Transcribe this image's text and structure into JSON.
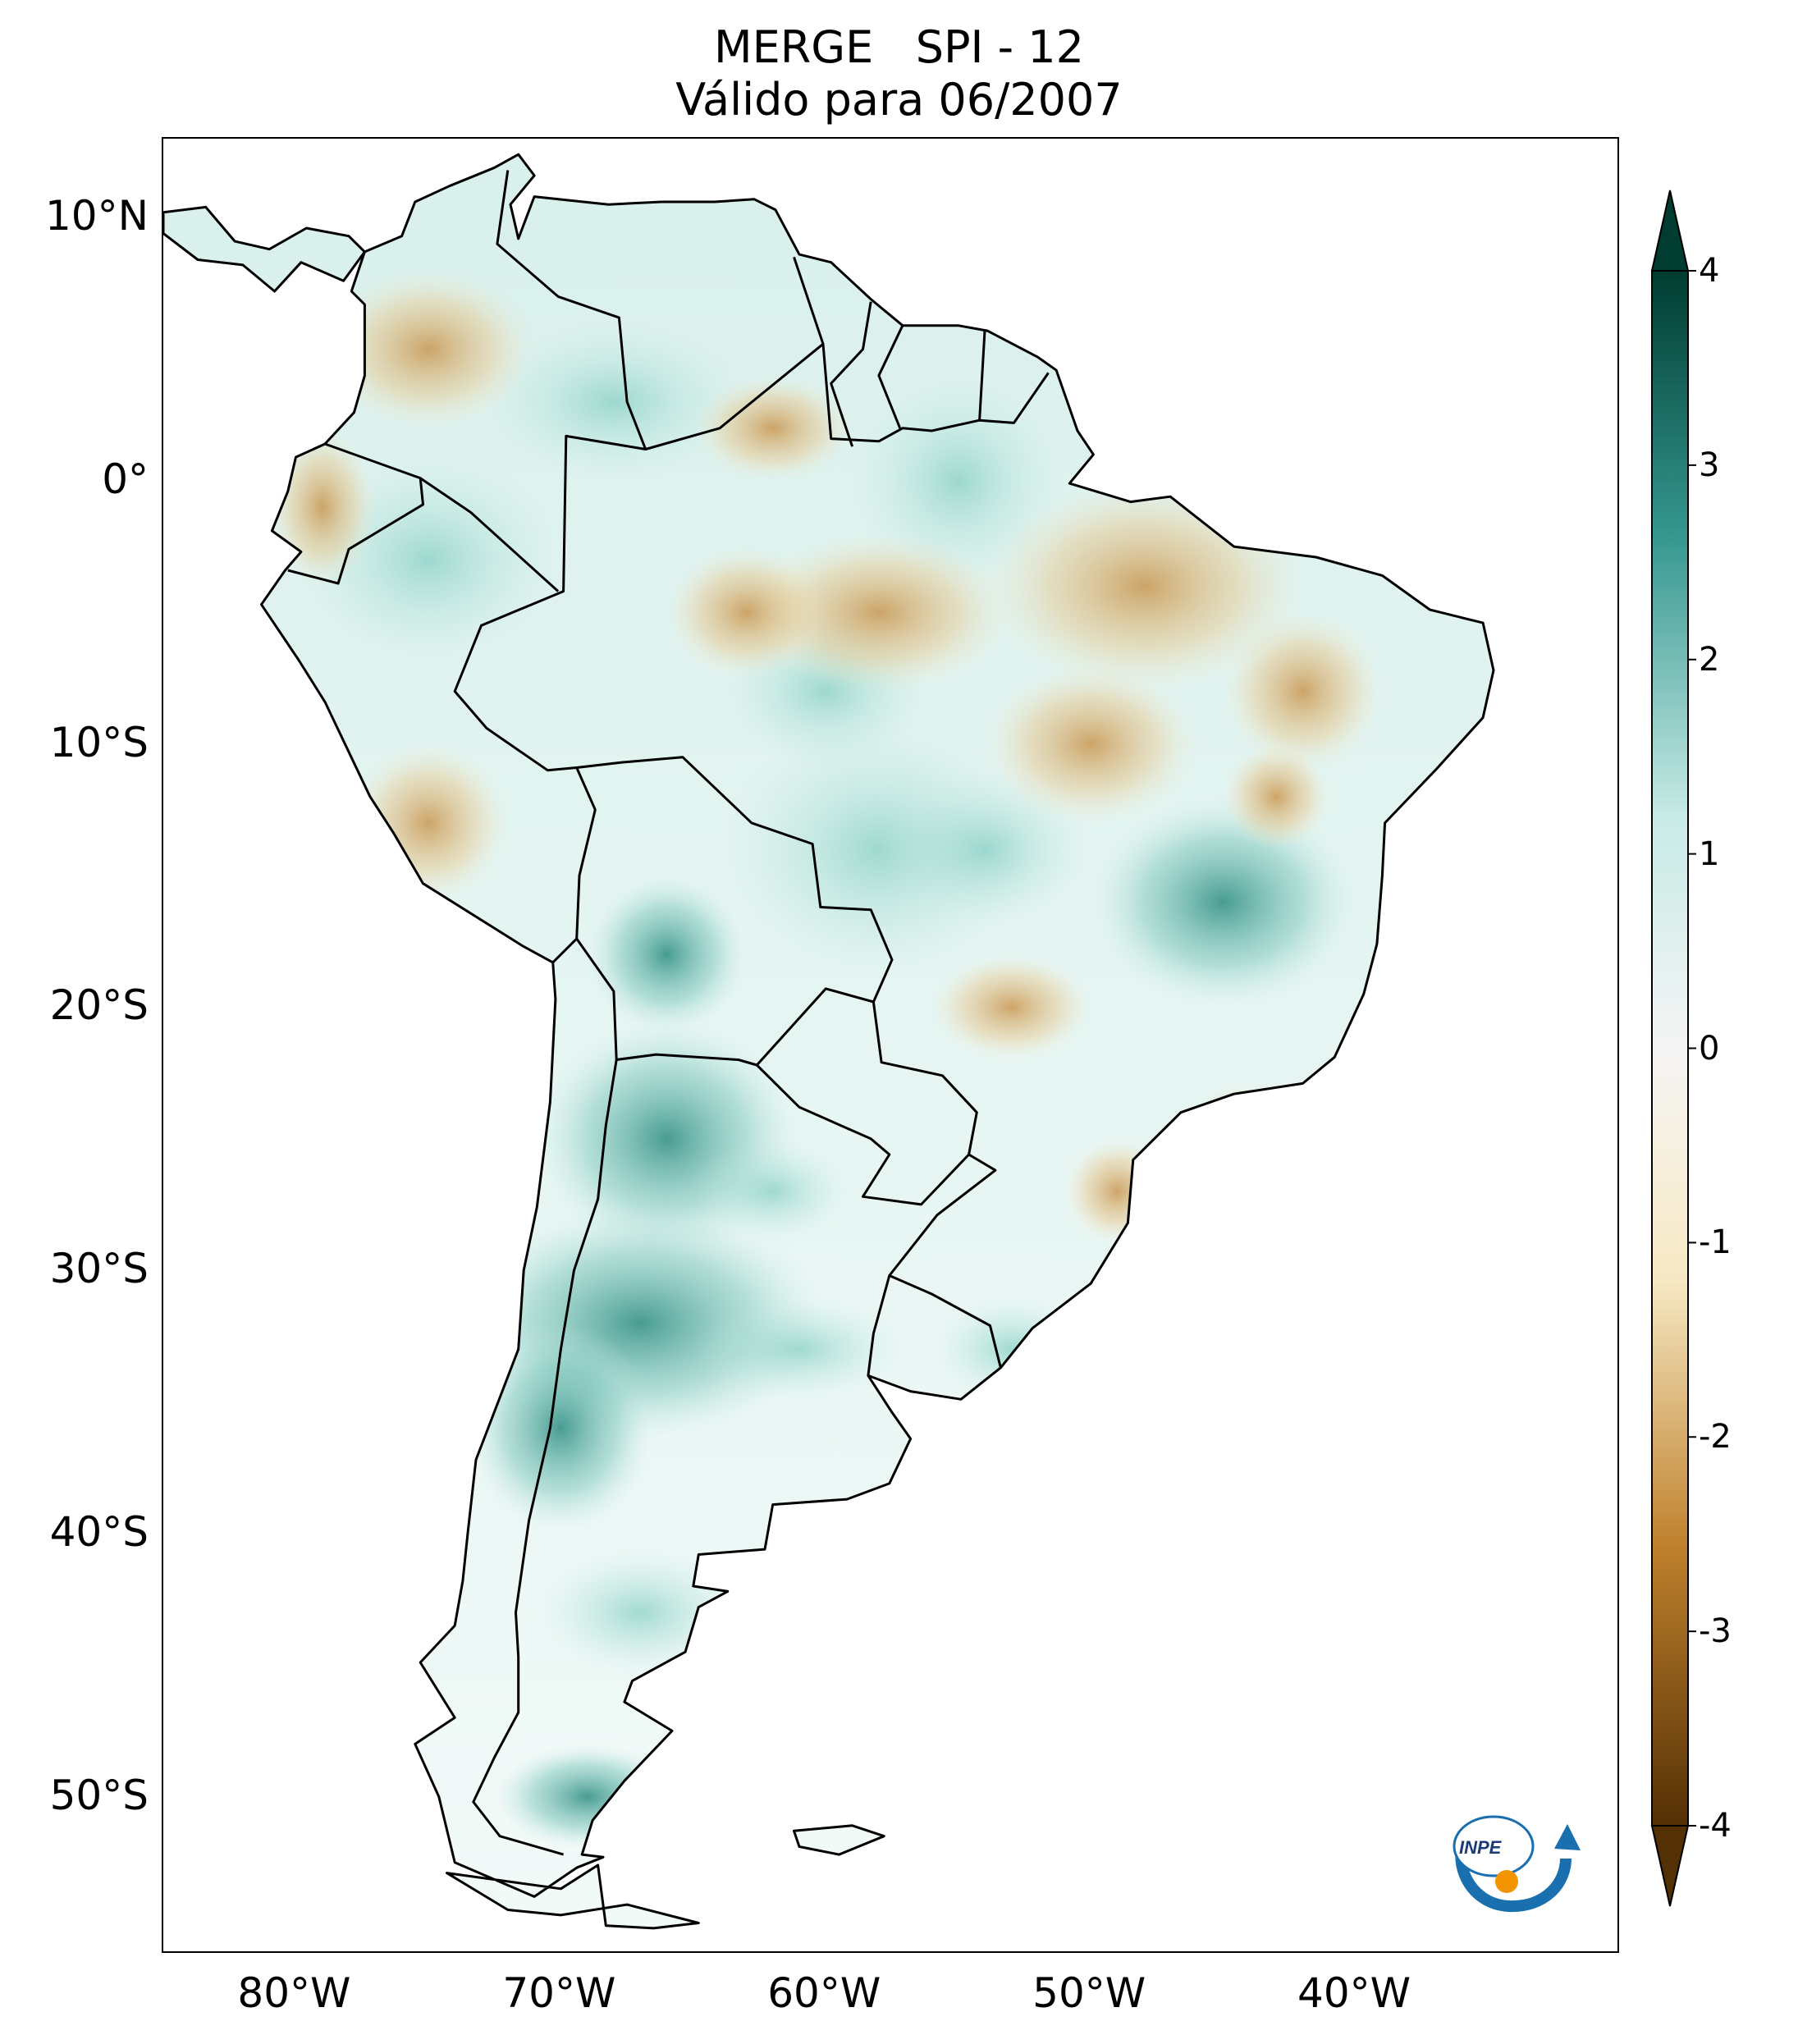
{
  "title": {
    "line1": "MERGE   SPI - 12",
    "line2": "Válido para 06/2007"
  },
  "map": {
    "lat_labels": [
      {
        "text": "10°N",
        "lat": 10
      },
      {
        "text": "0°",
        "lat": 0
      },
      {
        "text": "10°S",
        "lat": -10
      },
      {
        "text": "20°S",
        "lat": -20
      },
      {
        "text": "30°S",
        "lat": -30
      },
      {
        "text": "40°S",
        "lat": -40
      },
      {
        "text": "50°S",
        "lat": -50
      }
    ],
    "lon_labels": [
      {
        "text": "80°W",
        "lon": -80
      },
      {
        "text": "70°W",
        "lon": -70
      },
      {
        "text": "60°W",
        "lon": -60
      },
      {
        "text": "50°W",
        "lon": -50
      },
      {
        "text": "40°W",
        "lon": -40
      }
    ],
    "extent": {
      "lon": [
        -85,
        -30
      ],
      "lat": [
        -56,
        13
      ]
    }
  },
  "colorbar": {
    "ticks": [
      "4",
      "3",
      "2",
      "1",
      "0",
      "-1",
      "-2",
      "-3",
      "-4"
    ],
    "range": [
      -4,
      4
    ],
    "extend": "both",
    "colors": {
      "wet": "#003c30",
      "mid_wet": "#35978f",
      "light_wet": "#c7eae5",
      "neutral": "#f5f5f5",
      "light_dry": "#f6e8c3",
      "mid_dry": "#bf812d",
      "dry": "#543005"
    }
  },
  "logo": {
    "text": "INPE",
    "accent": "#f29400",
    "arrow": "#1a6faf"
  }
}
